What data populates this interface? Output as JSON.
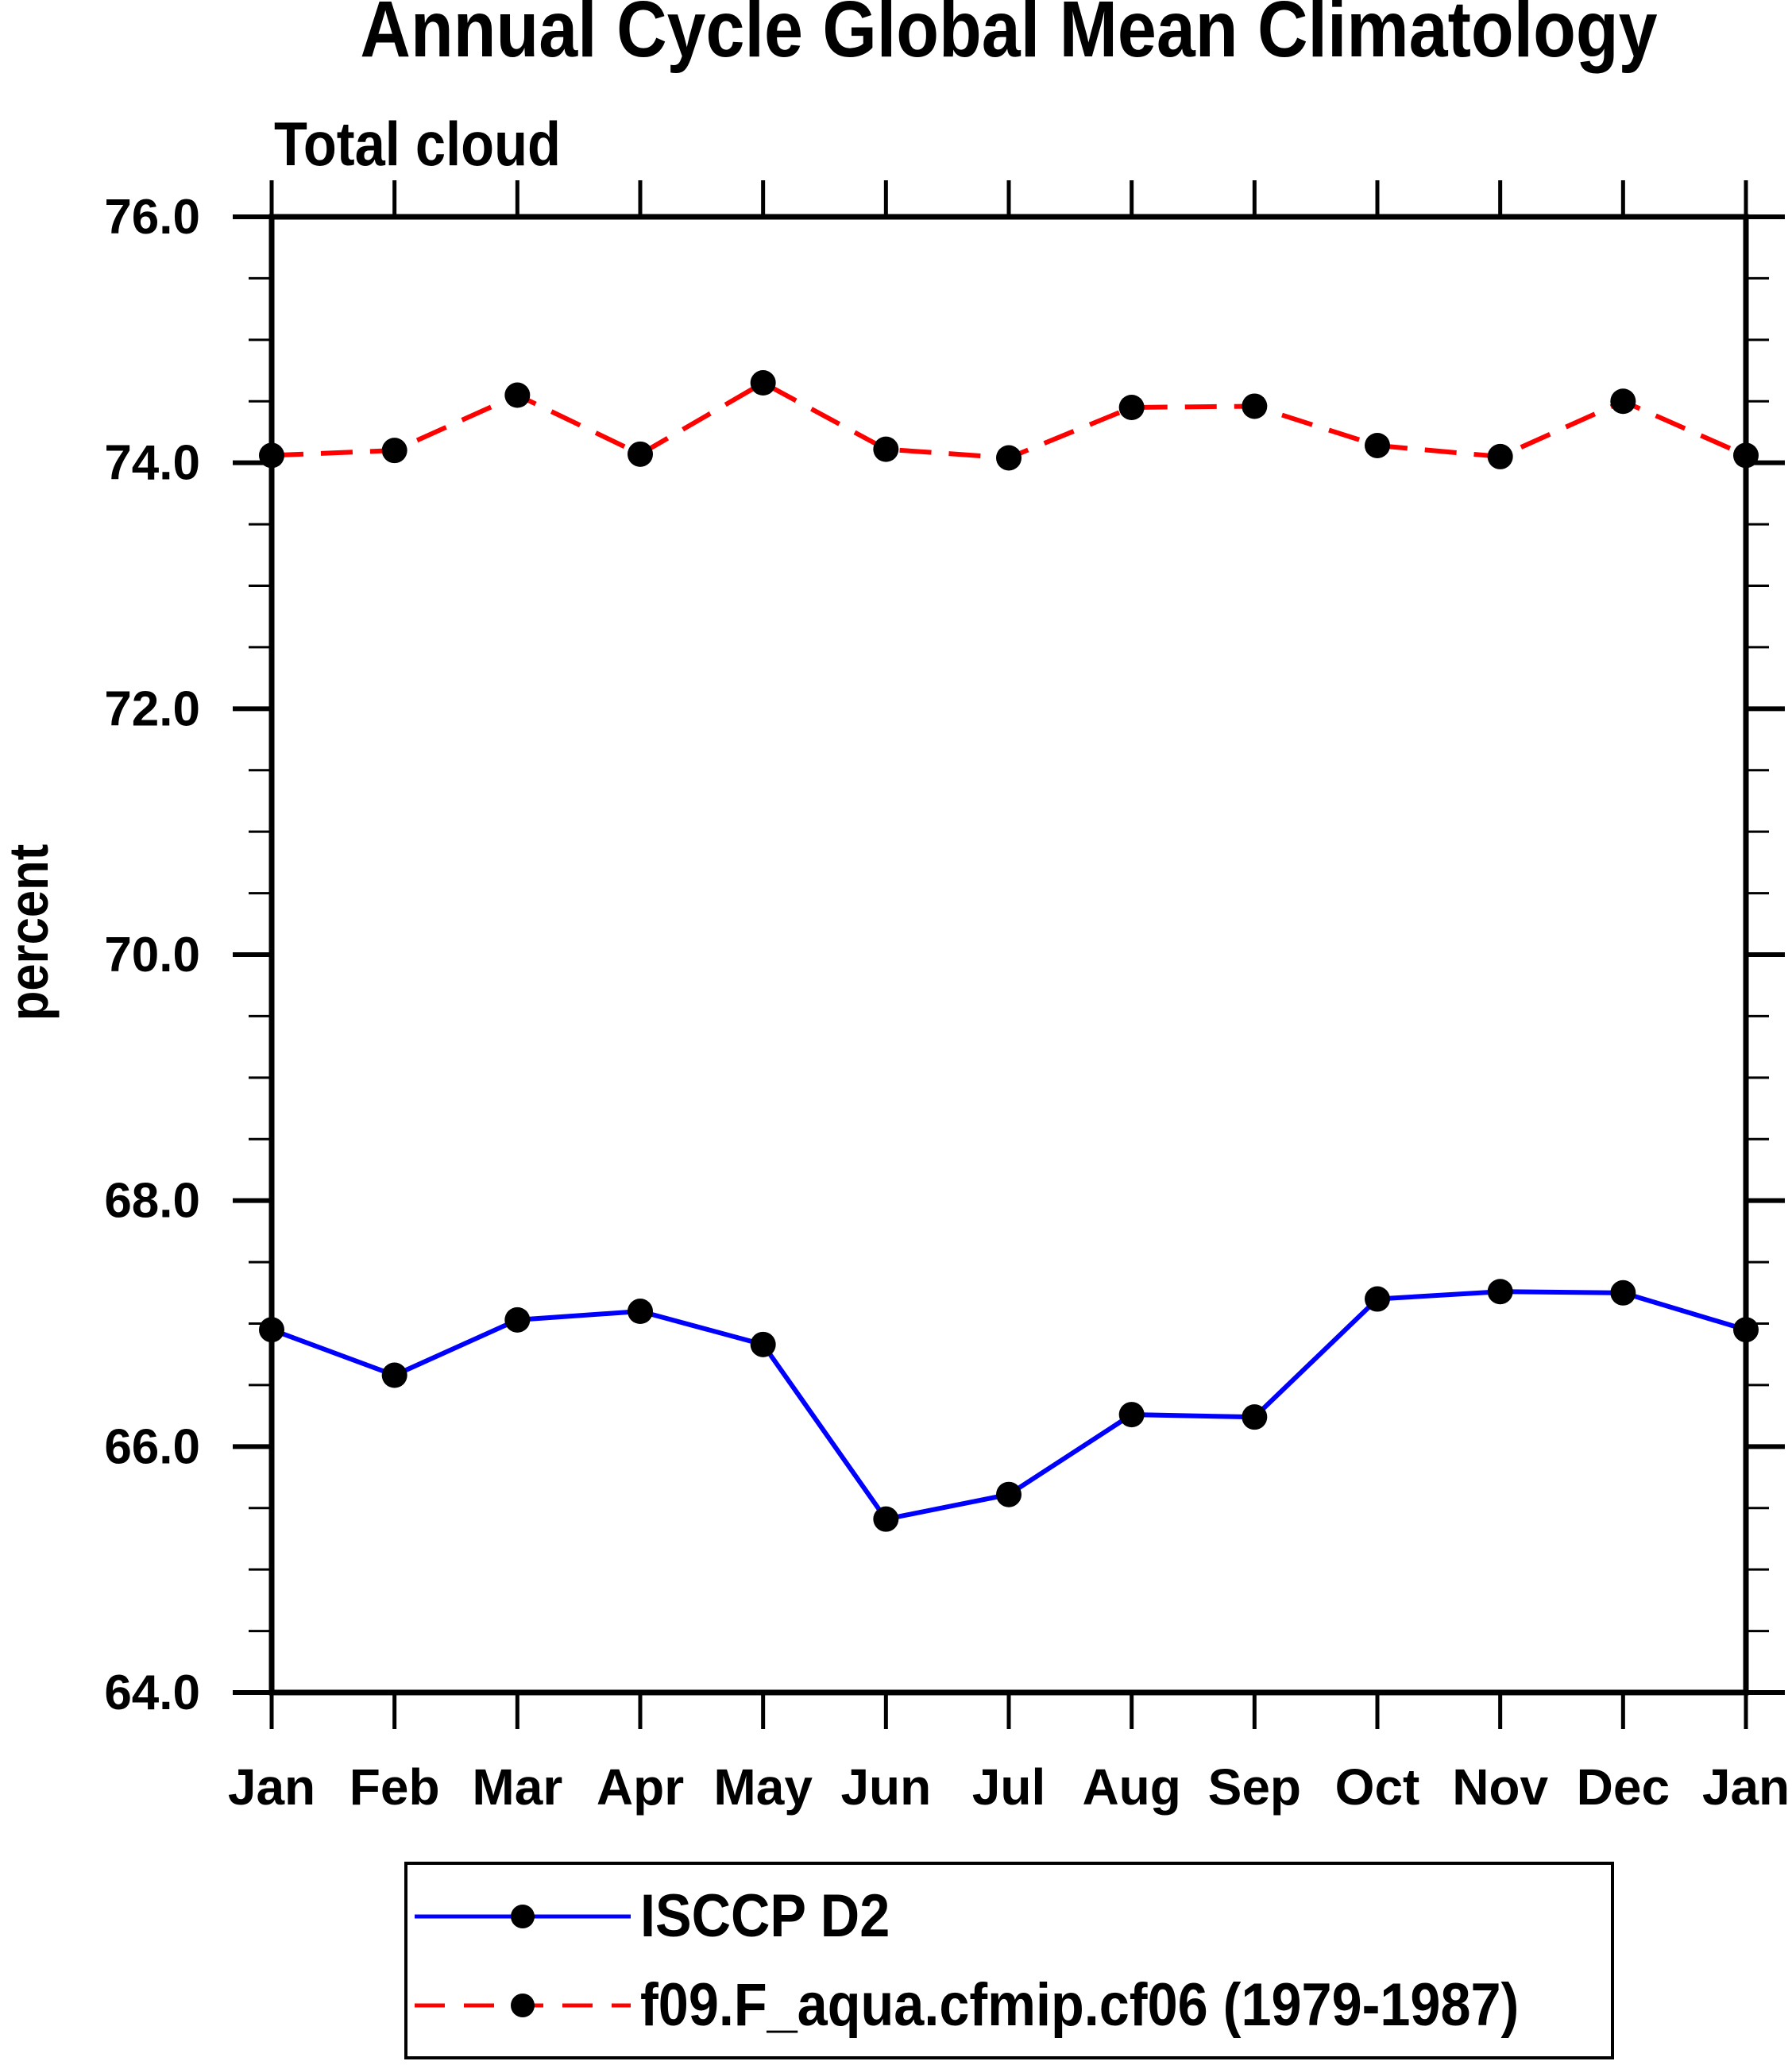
{
  "title": "Annual Cycle Global Mean Climatology",
  "subtitle": "Total cloud",
  "y_axis": {
    "label": "percent",
    "tick_labels": [
      "76.0",
      "74.0",
      "72.0",
      "70.0",
      "68.0",
      "66.0",
      "64.0"
    ]
  },
  "x_axis": {
    "tick_labels": [
      "Jan",
      "Feb",
      "Mar",
      "Apr",
      "May",
      "Jun",
      "Jul",
      "Aug",
      "Sep",
      "Oct",
      "Nov",
      "Dec",
      "Jan"
    ]
  },
  "legend": {
    "entries": [
      {
        "label": "ISCCP D2",
        "color": "#0000ff",
        "style": "solid"
      },
      {
        "label": "f09.F_aqua.cfmip.cf06 (1979-1987)",
        "color": "#ff0000",
        "style": "dashed"
      }
    ]
  },
  "colors": {
    "axis": "#000000",
    "marker": "#000000",
    "background": "#ffffff",
    "series_blue": "#0000ff",
    "series_red": "#ff0000"
  },
  "chart_data": {
    "type": "line",
    "title": "Annual Cycle Global Mean Climatology",
    "subtitle": "Total cloud",
    "ylabel": "percent",
    "x": [
      "Jan",
      "Feb",
      "Mar",
      "Apr",
      "May",
      "Jun",
      "Jul",
      "Aug",
      "Sep",
      "Oct",
      "Nov",
      "Dec",
      "Jan"
    ],
    "series": [
      {
        "name": "ISCCP D2",
        "color": "#0000ff",
        "line_style": "solid",
        "marker": "filled-circle",
        "values": [
          66.95,
          66.58,
          67.03,
          67.1,
          66.83,
          65.41,
          65.61,
          66.26,
          66.24,
          67.2,
          67.26,
          67.25,
          66.95
        ]
      },
      {
        "name": "f09.F_aqua.cfmip.cf06 (1979-1987)",
        "color": "#ff0000",
        "line_style": "dashed",
        "marker": "filled-circle",
        "values": [
          74.06,
          74.1,
          74.55,
          74.07,
          74.65,
          74.11,
          74.04,
          74.45,
          74.46,
          74.14,
          74.05,
          74.5,
          74.06
        ]
      }
    ],
    "ylim": [
      64.0,
      76.0
    ],
    "y_major_step": 2.0,
    "y_minor_step": 0.5,
    "y_tick_labels": [
      "76.0",
      "74.0",
      "72.0",
      "70.0",
      "68.0",
      "66.0",
      "64.0"
    ],
    "grid": false,
    "legend_position": "bottom",
    "ticks": "outward-all-sides"
  }
}
